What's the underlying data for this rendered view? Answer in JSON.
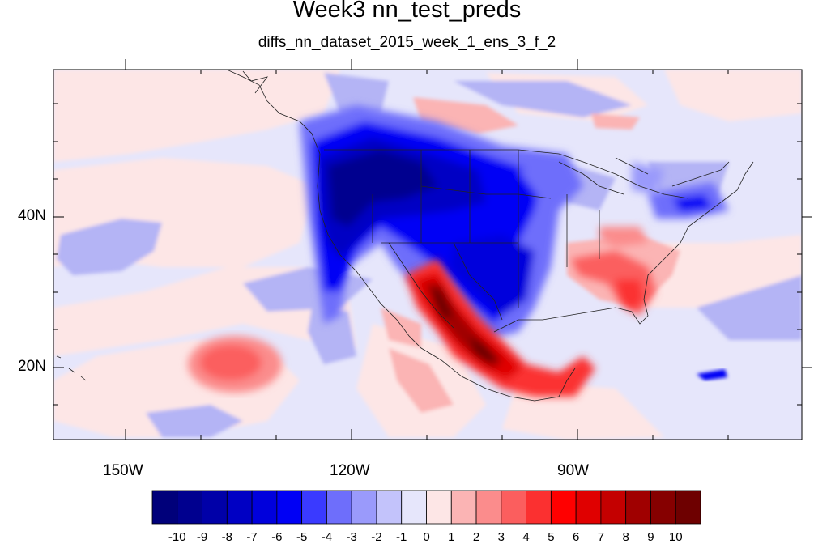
{
  "title": "Week3 nn_test_preds",
  "subtitle": "diffs_nn_dataset_2015_week_1_ens_3_f_2",
  "lon_labels": [
    "150W",
    "120W",
    "90W"
  ],
  "lat_labels": [
    "40N",
    "20N"
  ],
  "colorbar": {
    "labels": [
      "-10",
      "-9",
      "-8",
      "-7",
      "-6",
      "-5",
      "-4",
      "-3",
      "-2",
      "-1",
      "0",
      "1",
      "2",
      "3",
      "4",
      "5",
      "6",
      "7",
      "8",
      "9",
      "10"
    ],
    "colors": [
      "#00007a",
      "#00008f",
      "#0000a8",
      "#0000c4",
      "#0000dc",
      "#0000f5",
      "#3a3aff",
      "#6e6efb",
      "#9a9afb",
      "#c3c3fb",
      "#e6e6fb",
      "#fde6e6",
      "#fbb4b4",
      "#fb8c8c",
      "#fb5e5e",
      "#fb3030",
      "#ff0000",
      "#e00000",
      "#c40000",
      "#a00000",
      "#860000",
      "#6e0000"
    ]
  },
  "map_data": {
    "projection": "cylindrical equidistant",
    "lon_range": [
      -160,
      -61
    ],
    "lat_range": [
      10,
      59
    ],
    "variable": "prediction difference",
    "features": [
      {
        "name": "western US negative anomaly",
        "level": -9
      },
      {
        "name": "central US negative anomaly",
        "level": -6
      },
      {
        "name": "Mexico positive anomaly",
        "level": 9
      },
      {
        "name": "southeastern US positive anomaly",
        "level": 4
      },
      {
        "name": "Pacific subtropical positive anomaly",
        "level": 4
      },
      {
        "name": "Caribbean negative anomaly",
        "level": -5
      }
    ]
  }
}
